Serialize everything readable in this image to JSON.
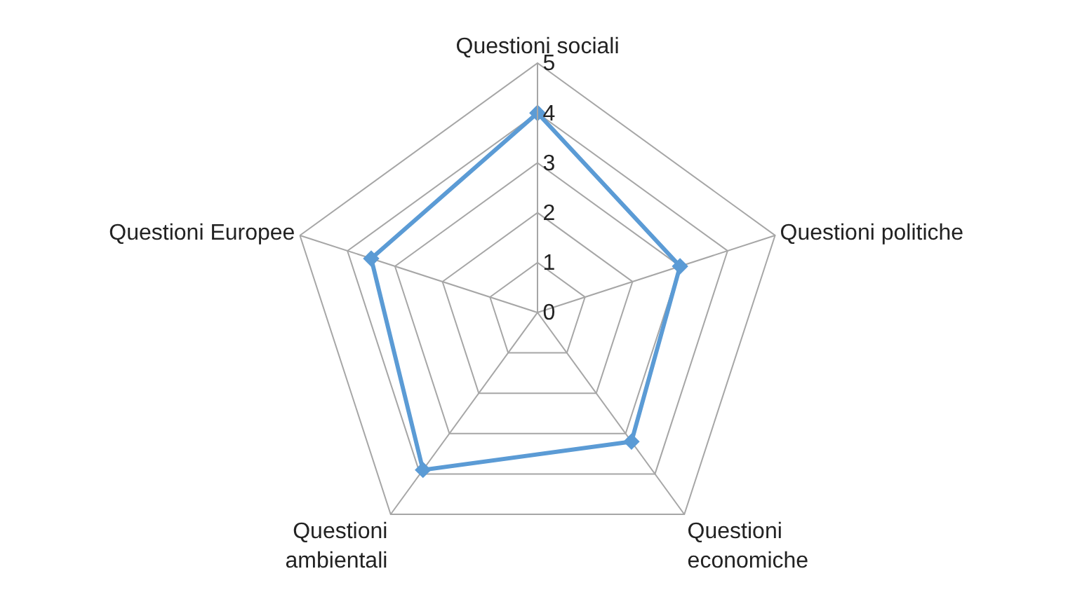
{
  "chart_data": {
    "type": "radar",
    "categories": [
      "Questioni sociali",
      "Questioni politiche",
      "Questioni\neconomiche",
      "Questioni\nambientali",
      "Questioni Europee"
    ],
    "series": [
      {
        "color": "#5b9bd5",
        "values": [
          4.0,
          3.0,
          3.2,
          3.9,
          3.5
        ]
      }
    ],
    "ylim": [
      0,
      5
    ],
    "yticks": [
      0,
      1,
      2,
      3,
      4,
      5
    ],
    "grid": true,
    "legend": false,
    "marker": "diamond",
    "line_style": "solid"
  }
}
